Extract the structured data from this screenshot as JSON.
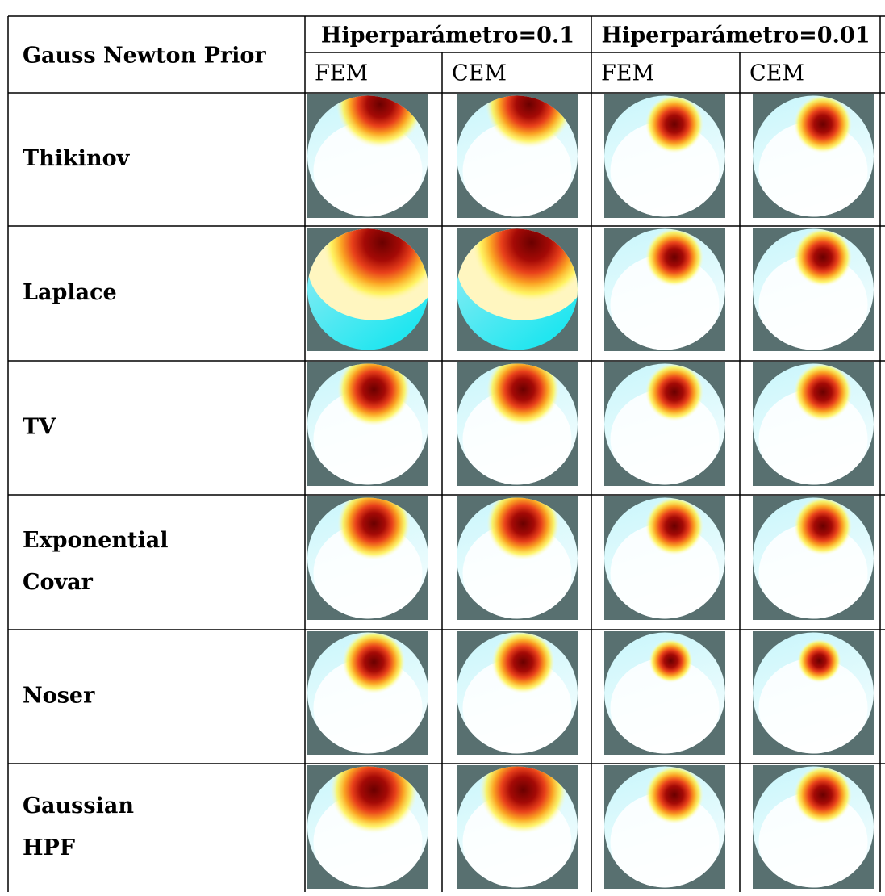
{
  "header": {
    "title": "Gauss Newton Prior",
    "groups": [
      "Hiperparámetro=0.1",
      "Hiperparámetro=0.01"
    ],
    "subcolumns": [
      "FEM",
      "CEM",
      "FEM",
      "CEM"
    ]
  },
  "rows": [
    {
      "label": [
        "Thikinov"
      ]
    },
    {
      "label": [
        "Laplace"
      ]
    },
    {
      "label": [
        "TV"
      ]
    },
    {
      "label": [
        "Exponential",
        "Covar"
      ]
    },
    {
      "label": [
        "Noser"
      ]
    },
    {
      "label": [
        "Gaussian",
        "HPF"
      ]
    }
  ]
}
